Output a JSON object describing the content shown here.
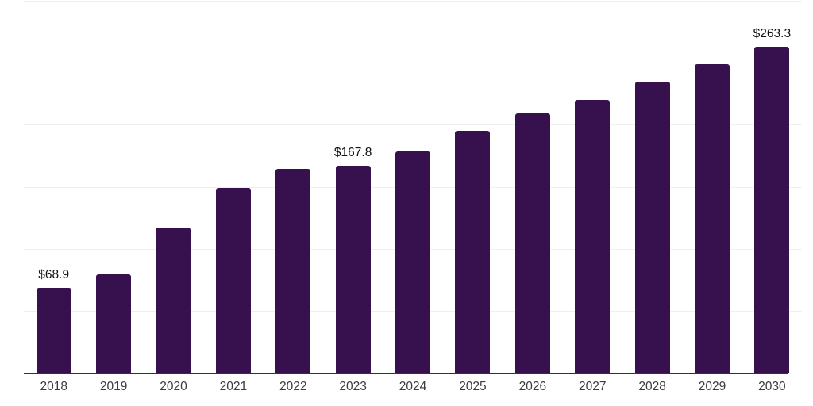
{
  "chart_data": {
    "type": "bar",
    "title": "",
    "xlabel": "",
    "ylabel": "",
    "categories": [
      "2018",
      "2019",
      "2020",
      "2021",
      "2022",
      "2023",
      "2024",
      "2025",
      "2026",
      "2027",
      "2028",
      "2029",
      "2030"
    ],
    "values": [
      68.9,
      79.7,
      118.0,
      149.6,
      165.2,
      167.8,
      179.4,
      196.0,
      209.6,
      220.8,
      235.1,
      249.6,
      263.3
    ],
    "data_labels": [
      "$68.9",
      "",
      "",
      "",
      "",
      "$167.8",
      "",
      "",
      "",
      "",
      "",
      "",
      "$263.3"
    ],
    "ylim": [
      0,
      300
    ],
    "gridline_interval": 50,
    "grid": true,
    "legend": false,
    "y_tick_labels_visible": false,
    "bar_color": "#36114E",
    "data_label_color": "#111111",
    "x_tick_label_color": "#3b3b3b",
    "gridline_color": "#efefef",
    "axis_line_color": "#333333",
    "background_color": "#ffffff"
  }
}
